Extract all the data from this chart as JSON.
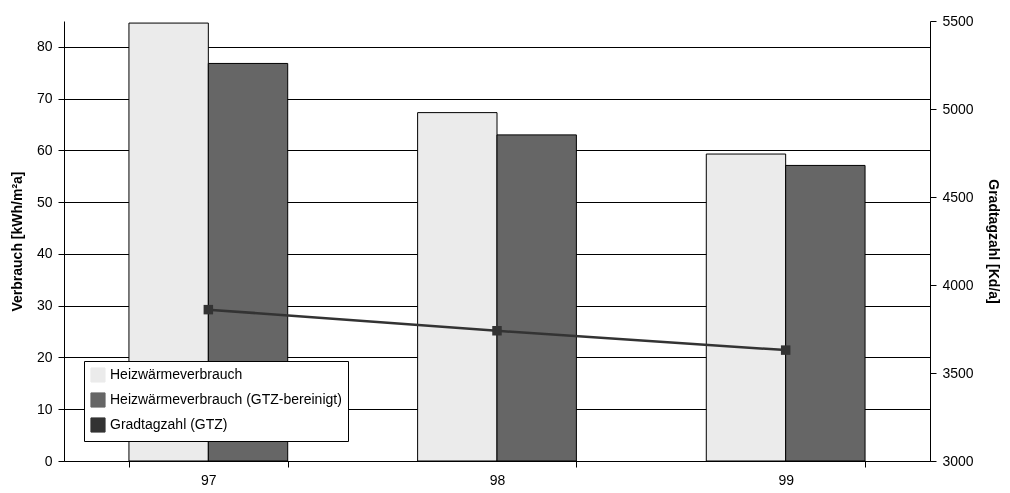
{
  "chart_data": {
    "type": "bar",
    "categories": [
      "97",
      "98",
      "99"
    ],
    "ylabel": "Verbrauch [kWh/m²a]",
    "y2label": "Gradtagzahl [Kd/a]",
    "ylim": [
      0,
      85
    ],
    "yticks": [
      0,
      10,
      20,
      30,
      40,
      50,
      60,
      70,
      80
    ],
    "y2lim": [
      3000,
      5500
    ],
    "y2ticks": [
      3000,
      3500,
      4000,
      4500,
      5000,
      5500
    ],
    "series": [
      {
        "name": "Heizwärmeverbrauch",
        "color": "#ebebeb",
        "values": [
          84.6,
          67.3,
          59.3
        ]
      },
      {
        "name": "Heizwärmeverbrauch (GTZ-bereinigt)",
        "color": "#666666",
        "values": [
          76.8,
          63,
          57.1
        ]
      },
      {
        "name": "Gradtagzahl (GTZ)",
        "type": "line",
        "axis": "y2",
        "color": "#333333",
        "values": [
          3860,
          3740,
          3630
        ]
      }
    ],
    "marker": "square",
    "grid": "y",
    "legend": "bottom left"
  }
}
